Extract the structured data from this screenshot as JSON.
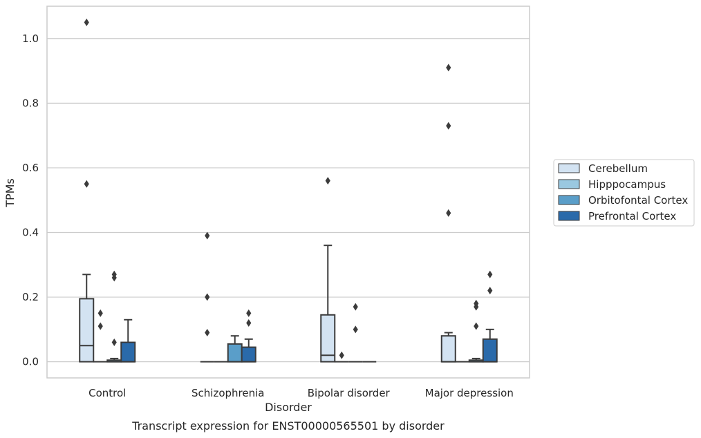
{
  "chart_data": {
    "type": "box",
    "title": "",
    "caption": "Transcript expression for ENST00000565501 by disorder",
    "xlabel": "Disorder",
    "ylabel": "TPMs",
    "ylim": [
      -0.05,
      1.1
    ],
    "yticks": [
      "0.0",
      "0.2",
      "0.4",
      "0.6",
      "0.8",
      "1.0"
    ],
    "grid": "horizontal",
    "legend_position": "right",
    "categories": [
      "Control",
      "Schizophrenia",
      "Bipolar disorder",
      "Major depression"
    ],
    "series": [
      {
        "name": "Cerebellum",
        "color": "#d3e3f2",
        "boxes": [
          {
            "whisker_low": 0.0,
            "q1": 0.0,
            "median": 0.05,
            "q3": 0.195,
            "whisker_high": 0.27,
            "outliers": [
              0.55,
              1.05
            ]
          },
          {
            "whisker_low": 0.0,
            "q1": 0.0,
            "median": 0.0,
            "q3": 0.0,
            "whisker_high": 0.0,
            "outliers": [
              0.09,
              0.2,
              0.39
            ]
          },
          {
            "whisker_low": 0.0,
            "q1": 0.0,
            "median": 0.02,
            "q3": 0.145,
            "whisker_high": 0.36,
            "outliers": [
              0.56
            ]
          },
          {
            "whisker_low": 0.0,
            "q1": 0.0,
            "median": 0.0,
            "q3": 0.08,
            "whisker_high": 0.09,
            "outliers": [
              0.46,
              0.73,
              0.91
            ]
          }
        ]
      },
      {
        "name": "Hipppocampus",
        "color": "#9ac8e0",
        "boxes": [
          {
            "whisker_low": 0.0,
            "q1": 0.0,
            "median": 0.0,
            "q3": 0.0,
            "whisker_high": 0.0,
            "outliers": [
              0.11,
              0.15
            ]
          },
          {
            "whisker_low": 0.0,
            "q1": 0.0,
            "median": 0.0,
            "q3": 0.0,
            "whisker_high": 0.0,
            "outliers": []
          },
          {
            "whisker_low": 0.0,
            "q1": 0.0,
            "median": 0.0,
            "q3": 0.0,
            "whisker_high": 0.0,
            "outliers": [
              0.02
            ]
          },
          {
            "whisker_low": 0.0,
            "q1": 0.0,
            "median": 0.0,
            "q3": 0.0,
            "whisker_high": 0.0,
            "outliers": []
          }
        ]
      },
      {
        "name": "Orbitofontal Cortex",
        "color": "#5a9ec9",
        "boxes": [
          {
            "whisker_low": 0.0,
            "q1": 0.0,
            "median": 0.0,
            "q3": 0.005,
            "whisker_high": 0.01,
            "outliers": [
              0.06,
              0.26,
              0.27
            ]
          },
          {
            "whisker_low": 0.0,
            "q1": 0.0,
            "median": 0.0,
            "q3": 0.055,
            "whisker_high": 0.08,
            "outliers": []
          },
          {
            "whisker_low": 0.0,
            "q1": 0.0,
            "median": 0.0,
            "q3": 0.0,
            "whisker_high": 0.0,
            "outliers": [
              0.1,
              0.17
            ]
          },
          {
            "whisker_low": 0.0,
            "q1": 0.0,
            "median": 0.0,
            "q3": 0.005,
            "whisker_high": 0.01,
            "outliers": [
              0.11,
              0.17,
              0.18
            ]
          }
        ]
      },
      {
        "name": "Prefrontal Cortex",
        "color": "#2a6aaa",
        "boxes": [
          {
            "whisker_low": 0.0,
            "q1": 0.0,
            "median": 0.0,
            "q3": 0.06,
            "whisker_high": 0.13,
            "outliers": []
          },
          {
            "whisker_low": 0.0,
            "q1": 0.0,
            "median": 0.0,
            "q3": 0.045,
            "whisker_high": 0.07,
            "outliers": [
              0.12,
              0.15
            ]
          },
          {
            "whisker_low": 0.0,
            "q1": 0.0,
            "median": 0.0,
            "q3": 0.0,
            "whisker_high": 0.0,
            "outliers": []
          },
          {
            "whisker_low": 0.0,
            "q1": 0.0,
            "median": 0.0,
            "q3": 0.07,
            "whisker_high": 0.1,
            "outliers": [
              0.22,
              0.27
            ]
          }
        ]
      }
    ]
  }
}
